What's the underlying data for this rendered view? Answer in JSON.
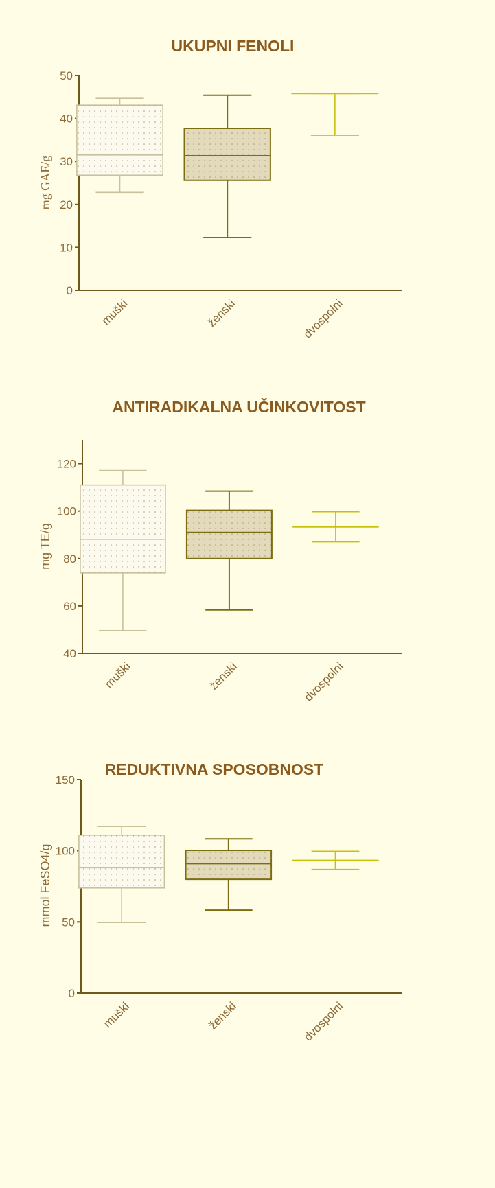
{
  "chart_data": [
    {
      "type": "box",
      "title": "UKUPNI FENOLI",
      "y_label": "mg GAE/g",
      "categories": [
        "muški",
        "ženski",
        "dvospolni"
      ],
      "low": [
        22.8,
        12.3,
        36.1
      ],
      "q1": [
        26.8,
        25.6,
        45.8
      ],
      "median": [
        31.5,
        31.3,
        45.8
      ],
      "q3": [
        43.1,
        37.7,
        45.8
      ],
      "high": [
        44.7,
        45.4,
        45.8
      ],
      "colors": [
        "#c9c19c",
        "#7d6d12",
        "#c8c10a"
      ],
      "fills": [
        "#fcfaee",
        "#e2dabb",
        "#fffde6"
      ],
      "ylim": [
        0,
        50
      ],
      "yticks": [
        0,
        10,
        20,
        30,
        40,
        50
      ]
    },
    {
      "type": "box",
      "title": "ANTIRADIKALNA UČINKOVITOST",
      "y_label": "mg TE/g",
      "categories": [
        "muški",
        "ženski",
        "dvospolni"
      ],
      "low": [
        49.6,
        58.3,
        87
      ],
      "q1": [
        73.9,
        80,
        93.3
      ],
      "median": [
        88.1,
        91,
        93.3
      ],
      "q3": [
        111,
        100.3,
        93.3
      ],
      "high": [
        117.1,
        108.4,
        99.7
      ],
      "colors": [
        "#c9c19c",
        "#7d6d12",
        "#c8c10a"
      ],
      "fills": [
        "#fcfaee",
        "#e2dabb",
        "#fffde6"
      ],
      "ylim": [
        40,
        130
      ],
      "yticks": [
        40,
        60,
        80,
        100,
        120
      ]
    },
    {
      "type": "box",
      "title": "REDUKTIVNA SPOSOBNOST",
      "y_label": "mmol FeSO4/g",
      "categories": [
        "muški",
        "ženski",
        "dvospolni"
      ],
      "low": [
        49.6,
        58.3,
        87
      ],
      "q1": [
        73.9,
        80,
        93.3
      ],
      "median": [
        88.1,
        91,
        93.3
      ],
      "q3": [
        111,
        100.3,
        93.3
      ],
      "high": [
        117.1,
        108.4,
        99.7
      ],
      "colors": [
        "#c9c19c",
        "#7d6d12",
        "#c8c10a"
      ],
      "fills": [
        "#fcfaee",
        "#e2dabb",
        "#fffde6"
      ],
      "ylim": [
        0,
        150
      ],
      "yticks": [
        0,
        50,
        100,
        150
      ]
    }
  ]
}
